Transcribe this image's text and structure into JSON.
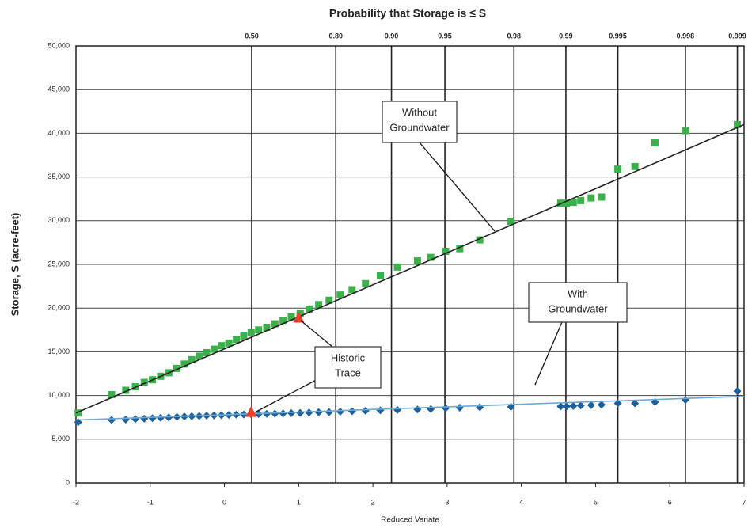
{
  "chart_data": {
    "type": "scatter",
    "title": "Probability that Storage is ≤ S",
    "x_label": "Reduced Variate",
    "y_label": "Storage, S (acre-feet)",
    "xlim": [
      -2,
      7
    ],
    "xticks": [
      -2,
      -1,
      0,
      1,
      2,
      3,
      4,
      5,
      6,
      7
    ],
    "x2ticks": [
      {
        "value": 0.367,
        "label": "0.50"
      },
      {
        "value": 1.5,
        "label": "0.80"
      },
      {
        "value": 2.25,
        "label": "0.90"
      },
      {
        "value": 2.97,
        "label": "0.95"
      },
      {
        "value": 3.9,
        "label": "0.98"
      },
      {
        "value": 4.6,
        "label": "0.99"
      },
      {
        "value": 5.3,
        "label": "0.995"
      },
      {
        "value": 6.21,
        "label": "0.998"
      },
      {
        "value": 6.91,
        "label": "0.999"
      }
    ],
    "ylim": [
      0,
      50000
    ],
    "yticks": [
      0,
      {
        "value": 5000,
        "label": "5,000"
      },
      {
        "value": 10000,
        "label": "10,000"
      },
      {
        "value": 15000,
        "label": "15,000"
      },
      {
        "value": 20000,
        "label": "20,000"
      },
      {
        "value": 25000,
        "label": "25,000"
      },
      {
        "value": 30000,
        "label": "30,000"
      },
      {
        "value": 35000,
        "label": "35,000"
      },
      {
        "value": 40000,
        "label": "40,000"
      },
      {
        "value": 45000,
        "label": "45,000"
      },
      {
        "value": 50000,
        "label": "50,000"
      }
    ],
    "grid": true,
    "series": [
      {
        "marker": "square",
        "color": "#3cb04a",
        "x": [
          -1.97,
          -1.52,
          -1.33,
          -1.2,
          -1.08,
          -0.97,
          -0.86,
          -0.75,
          -0.64,
          -0.54,
          -0.44,
          -0.34,
          -0.24,
          -0.14,
          -0.04,
          0.06,
          0.16,
          0.26,
          0.36,
          0.46,
          0.57,
          0.68,
          0.79,
          0.9,
          1.02,
          1.14,
          1.27,
          1.41,
          1.56,
          1.72,
          1.9,
          2.1,
          2.33,
          2.6,
          2.78,
          2.98,
          3.17,
          3.44,
          3.86,
          4.53,
          4.61,
          4.7,
          4.8,
          4.94,
          5.08,
          5.3,
          5.53,
          5.8,
          6.21,
          6.91
        ],
        "values": [
          8000,
          10100,
          10600,
          11000,
          11500,
          11800,
          12200,
          12600,
          13100,
          13600,
          14100,
          14500,
          14900,
          15300,
          15700,
          16000,
          16400,
          16800,
          17200,
          17500,
          17800,
          18200,
          18600,
          19000,
          19400,
          19900,
          20400,
          20900,
          21500,
          22100,
          22800,
          23700,
          24700,
          25400,
          25800,
          26500,
          26800,
          27800,
          29900,
          32000,
          32000,
          32100,
          32300,
          32600,
          32700,
          35900,
          36200,
          38900,
          40300,
          41000
        ]
      },
      {
        "marker": "diamond",
        "color": "#1f5f9a",
        "x": [
          -1.97,
          -1.52,
          -1.33,
          -1.2,
          -1.08,
          -0.97,
          -0.86,
          -0.75,
          -0.64,
          -0.54,
          -0.44,
          -0.34,
          -0.24,
          -0.14,
          -0.04,
          0.06,
          0.16,
          0.26,
          0.36,
          0.46,
          0.57,
          0.68,
          0.79,
          0.9,
          1.02,
          1.14,
          1.27,
          1.41,
          1.56,
          1.72,
          1.9,
          2.1,
          2.33,
          2.6,
          2.78,
          2.98,
          3.17,
          3.44,
          3.86,
          4.53,
          4.61,
          4.7,
          4.8,
          4.94,
          5.08,
          5.3,
          5.53,
          5.8,
          6.21,
          6.91
        ],
        "values": [
          6950,
          7200,
          7250,
          7300,
          7350,
          7400,
          7450,
          7500,
          7550,
          7600,
          7620,
          7650,
          7700,
          7720,
          7750,
          7780,
          7800,
          7820,
          7850,
          7880,
          7900,
          7930,
          7950,
          7980,
          8000,
          8050,
          8080,
          8100,
          8150,
          8200,
          8250,
          8300,
          8350,
          8400,
          8450,
          8550,
          8600,
          8650,
          8700,
          8750,
          8750,
          8800,
          8850,
          8900,
          8950,
          9100,
          9100,
          9250,
          9500,
          10500
        ]
      },
      {
        "marker": "line",
        "color": "#222222",
        "x": [
          -2,
          7
        ],
        "values": [
          8000,
          41000
        ]
      },
      {
        "marker": "line",
        "color": "#6aaad6",
        "x": [
          -2,
          7
        ],
        "values": [
          7200,
          9900
        ]
      },
      {
        "marker": "triangle",
        "color": "#e8402a",
        "x": [
          0.36,
          1.0
        ],
        "values": [
          8000,
          18800
        ]
      }
    ],
    "annotations": [
      {
        "lines": [
          "Without",
          "Groundwater"
        ]
      },
      {
        "lines": [
          "With",
          "Groundwater"
        ]
      },
      {
        "lines": [
          "Historic",
          "Trace"
        ]
      }
    ]
  }
}
